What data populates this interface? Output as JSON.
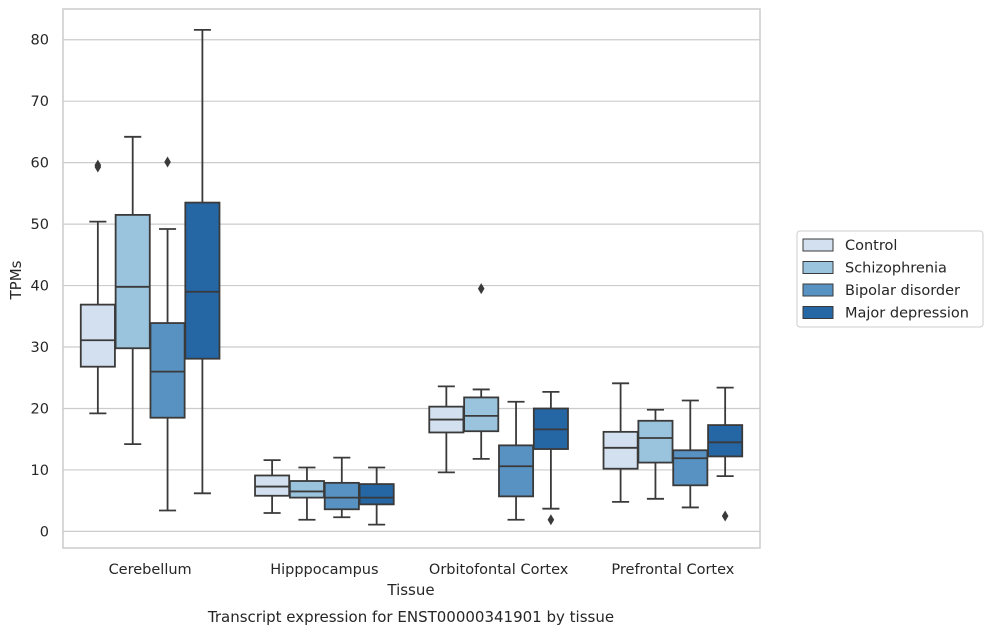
{
  "chart_data": {
    "type": "box",
    "title": "",
    "caption": "Transcript expression for ENST00000341901 by tissue",
    "xlabel": "Tissue",
    "ylabel": "TPMs",
    "ylim": [
      -2.7,
      85
    ],
    "yticks": [
      0,
      10,
      20,
      30,
      40,
      50,
      60,
      70,
      80
    ],
    "grid": "horizontal",
    "legend_position": "right",
    "categories": [
      "Cerebellum",
      "Hipppocampus",
      "Orbitofontal Cortex",
      "Prefrontal Cortex"
    ],
    "series": [
      {
        "name": "Control",
        "color": "#d2e0ef",
        "boxes": [
          {
            "whislo": 19.2,
            "q1": 26.8,
            "med": 31.1,
            "q3": 36.9,
            "whishi": 50.4,
            "fliers": [
              59.3,
              59.6
            ]
          },
          {
            "whislo": 3.0,
            "q1": 5.8,
            "med": 7.3,
            "q3": 9.1,
            "whishi": 11.6,
            "fliers": []
          },
          {
            "whislo": 9.6,
            "q1": 16.1,
            "med": 18.2,
            "q3": 20.3,
            "whishi": 23.6,
            "fliers": []
          },
          {
            "whislo": 4.8,
            "q1": 10.2,
            "med": 13.6,
            "q3": 16.2,
            "whishi": 24.1,
            "fliers": []
          }
        ]
      },
      {
        "name": "Schizophrenia",
        "color": "#9ac3de",
        "boxes": [
          {
            "whislo": 14.2,
            "q1": 29.8,
            "med": 39.8,
            "q3": 51.5,
            "whishi": 64.2,
            "fliers": []
          },
          {
            "whislo": 1.9,
            "q1": 5.5,
            "med": 6.5,
            "q3": 8.2,
            "whishi": 10.4,
            "fliers": []
          },
          {
            "whislo": 11.8,
            "q1": 16.3,
            "med": 18.8,
            "q3": 21.8,
            "whishi": 23.1,
            "fliers": [
              39.5
            ]
          },
          {
            "whislo": 5.3,
            "q1": 11.2,
            "med": 15.2,
            "q3": 18.0,
            "whishi": 19.8,
            "fliers": []
          }
        ]
      },
      {
        "name": "Bipolar disorder",
        "color": "#5792c2",
        "boxes": [
          {
            "whislo": 3.4,
            "q1": 18.5,
            "med": 26.0,
            "q3": 33.9,
            "whishi": 49.2,
            "fliers": [
              60.1
            ]
          },
          {
            "whislo": 2.3,
            "q1": 3.6,
            "med": 5.5,
            "q3": 7.9,
            "whishi": 12.0,
            "fliers": []
          },
          {
            "whislo": 1.9,
            "q1": 5.7,
            "med": 10.6,
            "q3": 14.0,
            "whishi": 21.1,
            "fliers": []
          },
          {
            "whislo": 3.9,
            "q1": 7.5,
            "med": 11.9,
            "q3": 13.2,
            "whishi": 21.3,
            "fliers": []
          }
        ]
      },
      {
        "name": "Major depression",
        "color": "#2566a5",
        "boxes": [
          {
            "whislo": 6.2,
            "q1": 28.1,
            "med": 39.0,
            "q3": 53.5,
            "whishi": 81.6,
            "fliers": []
          },
          {
            "whislo": 1.1,
            "q1": 4.4,
            "med": 5.5,
            "q3": 7.7,
            "whishi": 10.4,
            "fliers": []
          },
          {
            "whislo": 3.7,
            "q1": 13.4,
            "med": 16.6,
            "q3": 20.0,
            "whishi": 22.7,
            "fliers": [
              1.9
            ]
          },
          {
            "whislo": 9.0,
            "q1": 12.2,
            "med": 14.5,
            "q3": 17.3,
            "whishi": 23.4,
            "fliers": [
              2.5
            ]
          }
        ]
      }
    ]
  }
}
